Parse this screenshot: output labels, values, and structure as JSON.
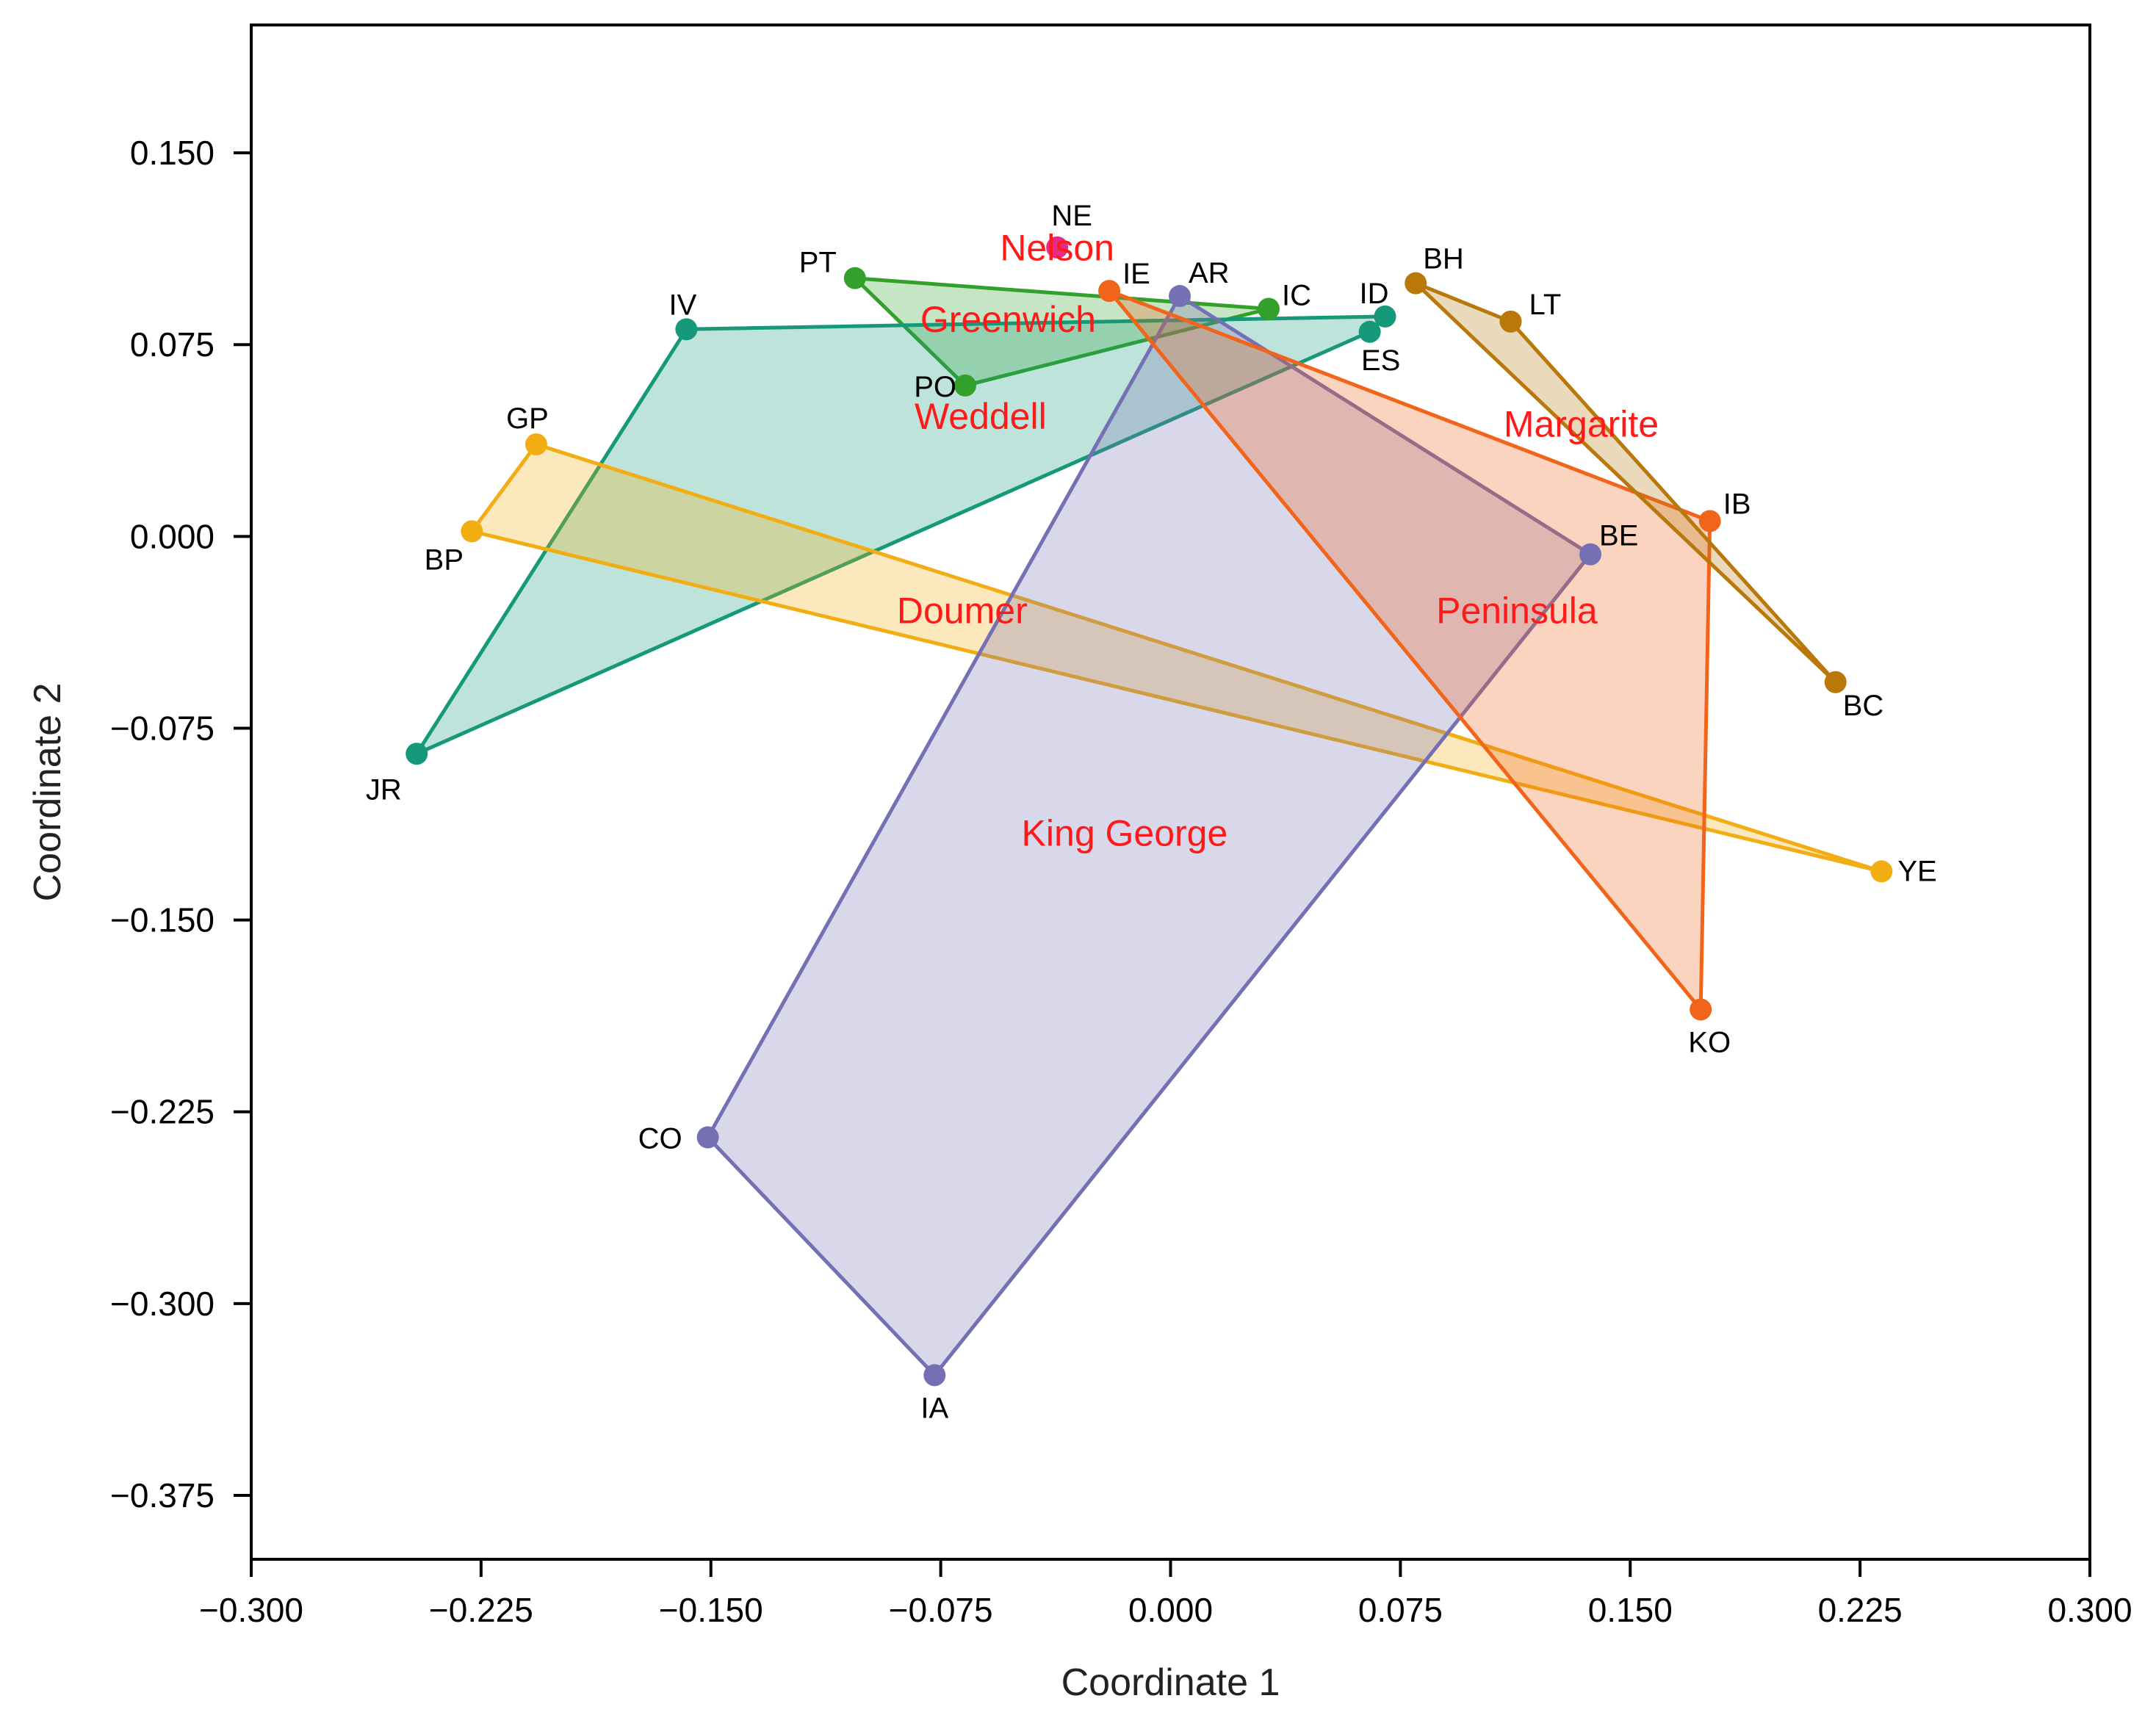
{
  "chart_data": {
    "type": "scatter",
    "xlabel": "Coordinate 1",
    "ylabel": "Coordinate 2",
    "xlim": [
      -0.3,
      0.3
    ],
    "ylim": [
      -0.4,
      0.2
    ],
    "xticks": [
      -0.3,
      -0.225,
      -0.15,
      -0.075,
      0.0,
      0.075,
      0.15,
      0.225,
      0.3
    ],
    "xtick_labels": [
      "−0.300",
      "−0.225",
      "−0.150",
      "−0.075",
      "0.000",
      "0.075",
      "0.150",
      "0.225",
      "0.300"
    ],
    "yticks": [
      0.15,
      0.075,
      0.0,
      -0.075,
      -0.15,
      -0.225,
      -0.3,
      -0.375
    ],
    "ytick_labels": [
      "0.150",
      "0.075",
      "0.000",
      "−0.075",
      "−0.150",
      "−0.225",
      "−0.300",
      "−0.375"
    ],
    "series": [
      {
        "name": "Nelson",
        "color": "#e7298a",
        "hull": false,
        "points": [
          {
            "label": "NE",
            "x": -0.037,
            "y": 0.113
          }
        ]
      },
      {
        "name": "Greenwich",
        "color": "#33a02c",
        "hull": true,
        "points": [
          {
            "label": "PT",
            "x": -0.103,
            "y": 0.101
          },
          {
            "label": "IC",
            "x": 0.032,
            "y": 0.089
          },
          {
            "label": "PO",
            "x": -0.067,
            "y": 0.059
          }
        ]
      },
      {
        "name": "Weddell",
        "color": "#16997a",
        "hull": true,
        "points": [
          {
            "label": "IV",
            "x": -0.158,
            "y": 0.081
          },
          {
            "label": "ID",
            "x": 0.07,
            "y": 0.086
          },
          {
            "label": "ES",
            "x": 0.065,
            "y": 0.08
          },
          {
            "label": "JR",
            "x": -0.246,
            "y": -0.085
          }
        ]
      },
      {
        "name": "Doumer",
        "color": "#f2ad13",
        "hull": true,
        "points": [
          {
            "label": "GP",
            "x": -0.207,
            "y": 0.036
          },
          {
            "label": "BP",
            "x": -0.228,
            "y": 0.002
          },
          {
            "label": "YE",
            "x": 0.232,
            "y": -0.131
          }
        ]
      },
      {
        "name": "King George",
        "color": "#7570b3",
        "hull": true,
        "points": [
          {
            "label": "AR",
            "x": 0.003,
            "y": 0.094
          },
          {
            "label": "BE",
            "x": 0.137,
            "y": -0.007
          },
          {
            "label": "IA",
            "x": -0.077,
            "y": -0.328
          },
          {
            "label": "CO",
            "x": -0.151,
            "y": -0.235
          }
        ]
      },
      {
        "name": "Peninsula",
        "color": "#f26419",
        "hull": true,
        "points": [
          {
            "label": "IE",
            "x": -0.02,
            "y": 0.096
          },
          {
            "label": "IB",
            "x": 0.176,
            "y": 0.006
          },
          {
            "label": "KO",
            "x": 0.173,
            "y": -0.185
          }
        ]
      },
      {
        "name": "Margarite",
        "color": "#b8780a",
        "hull": true,
        "points": [
          {
            "label": "BH",
            "x": 0.08,
            "y": 0.099
          },
          {
            "label": "LT",
            "x": 0.111,
            "y": 0.084
          },
          {
            "label": "BC",
            "x": 0.217,
            "y": -0.057
          }
        ]
      }
    ],
    "group_labels": [
      {
        "text": "Nelson",
        "x": -0.037,
        "y": 0.108
      },
      {
        "text": "Greenwich",
        "x": -0.053,
        "y": 0.08
      },
      {
        "text": "Weddell",
        "x": -0.062,
        "y": 0.042
      },
      {
        "text": "Margarite",
        "x": 0.134,
        "y": 0.039
      },
      {
        "text": "Doumer",
        "x": -0.068,
        "y": -0.034
      },
      {
        "text": "Peninsula",
        "x": 0.113,
        "y": -0.034
      },
      {
        "text": "King George",
        "x": -0.015,
        "y": -0.121
      }
    ]
  }
}
